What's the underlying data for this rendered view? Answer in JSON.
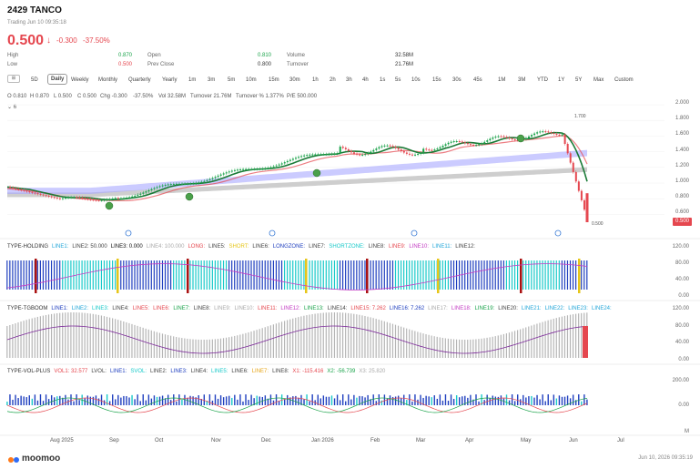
{
  "header": {
    "ticker": "2429",
    "name": "TANCO",
    "status": "Trading Jun 10 09:35:18",
    "price": "0.500",
    "change": "-0.300",
    "change_pct": "-37.50%"
  },
  "stats": [
    {
      "label": "High",
      "value": "0.870",
      "color": "green"
    },
    {
      "label": "Low",
      "value": "0.500",
      "color": "red"
    },
    {
      "label": "Open",
      "value": "0.810",
      "color": "green"
    },
    {
      "label": "Prev Close",
      "value": "0.800",
      "color": "plain"
    },
    {
      "label": "Volume",
      "value": "32.58M",
      "color": "plain"
    },
    {
      "label": "Turnover",
      "value": "21.76M",
      "color": "plain"
    }
  ],
  "toolbar": {
    "icon_label": "⊞",
    "periods": [
      "5D",
      "Daily",
      "Weekly",
      "Monthly",
      "Quarterly",
      "Yearly",
      "1m",
      "3m",
      "5m",
      "10m",
      "15m",
      "30m",
      "1h",
      "2h",
      "3h",
      "4h",
      "1s",
      "5s",
      "10s",
      "15s",
      "30s",
      "45s",
      "1M",
      "3M",
      "YTD",
      "1Y",
      "5Y",
      "Max",
      "Custom"
    ],
    "active": "Daily"
  },
  "ohlc_line": {
    "o": "O 0.810",
    "h": "H 0.870",
    "l": "L 0.500",
    "c": "C 0.500",
    "chg": "Chg -0.300",
    "chgp": "-37.50%",
    "vol": "Vol 32.58M",
    "turnover": "Turnover 21.76M",
    "turnover_pct": "Turnover % 1.377%",
    "pe": "P/E 500.000",
    "ma_label": "6"
  },
  "price_axis": [
    "2.000",
    "1.800",
    "1.600",
    "1.400",
    "1.200",
    "1.000",
    "0.800",
    "0.600"
  ],
  "price_tag": "0.500",
  "chart_annotations": {
    "high_label": "1.700",
    "low_label": "0.500"
  },
  "holding_panel": {
    "title": "TYPE-HOLDING",
    "labels": [
      {
        "text": "LINE1:",
        "color": "#22a6d8"
      },
      {
        "text": "LINE2: 50.000",
        "color": "#444"
      },
      {
        "text": "LINE3: 0.000",
        "color": "#111"
      },
      {
        "text": "LINE4: 100.000",
        "color": "#aaa"
      },
      {
        "text": "LONG:",
        "color": "#e5474f"
      },
      {
        "text": "LINE5:",
        "color": "#444"
      },
      {
        "text": "SHORT:",
        "color": "#e6c619"
      },
      {
        "text": "LINE6:",
        "color": "#444"
      },
      {
        "text": "LONGZONE:",
        "color": "#1f3fbf"
      },
      {
        "text": "LINE7:",
        "color": "#444"
      },
      {
        "text": "SHORTZONE:",
        "color": "#18c9c9"
      },
      {
        "text": "LINE8:",
        "color": "#444"
      },
      {
        "text": "LINE9:",
        "color": "#e5474f"
      },
      {
        "text": "LINE10:",
        "color": "#c33cc3"
      },
      {
        "text": "LINE11:",
        "color": "#22a6d8"
      },
      {
        "text": "LINE12:",
        "color": "#444"
      }
    ],
    "axis": [
      "120.00",
      "80.00",
      "40.00",
      "0.00"
    ]
  },
  "tgboom_panel": {
    "title": "TYPE-TGBOOM",
    "labels": [
      {
        "text": "LINE1:",
        "color": "#1f3fbf"
      },
      {
        "text": "LINE2:",
        "color": "#22a6d8"
      },
      {
        "text": "LINE3:",
        "color": "#18c9c9"
      },
      {
        "text": "LINE4:",
        "color": "#444"
      },
      {
        "text": "LINE5:",
        "color": "#e5474f"
      },
      {
        "text": "LINE6:",
        "color": "#e5474f"
      },
      {
        "text": "LINE7:",
        "color": "#1aa34a"
      },
      {
        "text": "LINE8:",
        "color": "#444"
      },
      {
        "text": "LINE9:",
        "color": "#aaa"
      },
      {
        "text": "LINE10:",
        "color": "#aaa"
      },
      {
        "text": "LINE11:",
        "color": "#e5474f"
      },
      {
        "text": "LINE12:",
        "color": "#c33cc3"
      },
      {
        "text": "LINE13:",
        "color": "#1aa34a"
      },
      {
        "text": "LINE14:",
        "color": "#444"
      },
      {
        "text": "LINE15: 7.262",
        "color": "#e5474f"
      },
      {
        "text": "LINE16: 7.262",
        "color": "#1f3fbf"
      },
      {
        "text": "LINE17:",
        "color": "#aaa"
      },
      {
        "text": "LINE18:",
        "color": "#c33cc3"
      },
      {
        "text": "LINE19:",
        "color": "#1aa34a"
      },
      {
        "text": "LINE20:",
        "color": "#444"
      },
      {
        "text": "LINE21:",
        "color": "#22a6d8"
      },
      {
        "text": "LINE22:",
        "color": "#22a6d8"
      },
      {
        "text": "LINE23:",
        "color": "#22a6d8"
      },
      {
        "text": "LINE24:",
        "color": "#22a6d8"
      }
    ],
    "axis": [
      "120.00",
      "80.00",
      "40.00",
      "0.00"
    ]
  },
  "vol_panel": {
    "title": "TYPE-VOL-PLUS",
    "labels": [
      {
        "text": "VOL1: 32.577",
        "color": "#e5474f"
      },
      {
        "text": "LVOL:",
        "color": "#444"
      },
      {
        "text": "LINE1:",
        "color": "#1f3fbf"
      },
      {
        "text": "SVOL:",
        "color": "#18c9c9"
      },
      {
        "text": "LINE2:",
        "color": "#444"
      },
      {
        "text": "LINE3:",
        "color": "#1f3fbf"
      },
      {
        "text": "LINE4:",
        "color": "#444"
      },
      {
        "text": "LINE5:",
        "color": "#18c9c9"
      },
      {
        "text": "LINE6:",
        "color": "#444"
      },
      {
        "text": "LINE7:",
        "color": "#e6a519"
      },
      {
        "text": "LINE8:",
        "color": "#444"
      },
      {
        "text": "X1: -115.416",
        "color": "#e5474f"
      },
      {
        "text": "X2: -56.739",
        "color": "#1aa34a"
      },
      {
        "text": "X3: 25.820",
        "color": "#aaa"
      }
    ],
    "axis": [
      "200.00",
      "0.00",
      "M"
    ]
  },
  "x_axis": [
    "Aug 2025",
    "Sep",
    "Oct",
    "Nov",
    "Dec",
    "Jan 2026",
    "Feb",
    "Mar",
    "Apr",
    "May",
    "Jun",
    "Jul"
  ],
  "footer": {
    "logo": "moomoo",
    "time": "Jun 10, 2026 09:35:19"
  },
  "colors": {
    "up": "#1aa34a",
    "down": "#e5474f",
    "accent": "#1f3fbf"
  }
}
